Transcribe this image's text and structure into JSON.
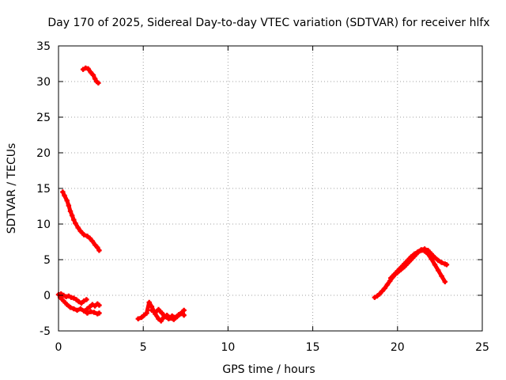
{
  "chart_data": {
    "type": "scatter",
    "title": "Day 170 of 2025, Sidereal Day-to-day VTEC variation (SDTVAR) for receiver hlfx",
    "xlabel": "GPS time / hours",
    "ylabel": "SDTVAR / TECUs",
    "xlim": [
      0,
      25
    ],
    "ylim": [
      -5,
      35
    ],
    "xticks": [
      0,
      5,
      10,
      15,
      20,
      25
    ],
    "yticks": [
      -5,
      0,
      5,
      10,
      15,
      20,
      25,
      30,
      35
    ],
    "grid": true,
    "series": [
      {
        "name": "SDTVAR",
        "color": "#ff0000",
        "segments": [
          {
            "x": [
              1.45,
              1.6,
              1.75,
              1.9,
              2.05,
              2.15,
              2.25,
              2.35
            ],
            "y": [
              31.7,
              31.9,
              31.8,
              31.3,
              30.9,
              30.4,
              30.0,
              29.8
            ]
          },
          {
            "x": [
              0.25,
              0.35,
              0.5,
              0.6,
              0.7,
              0.8,
              0.9,
              1.0,
              1.15,
              1.3,
              1.5,
              1.7,
              1.85,
              2.0,
              2.15,
              2.3,
              2.4
            ],
            "y": [
              14.5,
              14.0,
              13.3,
              12.6,
              11.8,
              11.2,
              10.6,
              10.1,
              9.5,
              9.0,
              8.5,
              8.3,
              8.0,
              7.6,
              7.1,
              6.7,
              6.3
            ]
          },
          {
            "x": [
              0.0,
              0.15,
              0.3,
              0.45,
              0.6,
              0.75,
              0.9,
              1.05,
              1.2,
              1.35,
              1.5,
              1.65
            ],
            "y": [
              0.1,
              0.2,
              0.0,
              -0.2,
              -0.1,
              -0.3,
              -0.4,
              -0.6,
              -0.9,
              -1.1,
              -0.8,
              -0.6
            ]
          },
          {
            "x": [
              0.1,
              0.3,
              0.5,
              0.7,
              0.9,
              1.1,
              1.3,
              1.5,
              1.7,
              1.9,
              2.1,
              2.3,
              2.4
            ],
            "y": [
              -0.3,
              -0.8,
              -1.3,
              -1.7,
              -1.9,
              -2.1,
              -1.9,
              -2.2,
              -2.5,
              -2.3,
              -2.4,
              -2.6,
              -2.5
            ]
          },
          {
            "x": [
              1.7,
              1.85,
              2.0,
              2.15,
              2.3,
              2.4
            ],
            "y": [
              -1.9,
              -1.6,
              -1.3,
              -1.5,
              -1.2,
              -1.4
            ]
          },
          {
            "x": [
              4.7,
              4.9,
              5.05,
              5.2,
              5.35,
              5.5,
              5.7,
              5.9,
              6.05,
              6.2,
              6.4,
              6.6,
              6.8,
              7.0,
              7.2,
              7.4
            ],
            "y": [
              -3.3,
              -3.1,
              -2.8,
              -2.5,
              -1.0,
              -1.6,
              -2.6,
              -3.3,
              -3.6,
              -3.1,
              -2.8,
              -3.2,
              -3.4,
              -3.0,
              -2.6,
              -2.1
            ]
          },
          {
            "x": [
              5.5,
              5.7,
              5.9,
              6.1,
              6.3,
              6.5,
              6.7,
              6.9,
              7.1,
              7.3,
              7.4
            ],
            "y": [
              -2.1,
              -2.4,
              -2.0,
              -2.5,
              -3.0,
              -3.3,
              -2.9,
              -3.1,
              -2.7,
              -2.4,
              -2.8
            ]
          },
          {
            "x": [
              18.65,
              18.8,
              18.95,
              19.1,
              19.25,
              19.4,
              19.55,
              19.7,
              19.85,
              20.0,
              20.2,
              20.4,
              20.6,
              20.8,
              21.0,
              21.2,
              21.4,
              21.6,
              21.8,
              22.0,
              22.2,
              22.4,
              22.6,
              22.8
            ],
            "y": [
              -0.3,
              -0.1,
              0.2,
              0.6,
              1.0,
              1.5,
              2.0,
              2.5,
              2.9,
              3.2,
              3.6,
              4.0,
              4.5,
              5.0,
              5.5,
              6.0,
              6.3,
              6.2,
              5.8,
              5.1,
              4.3,
              3.5,
              2.7,
              1.9
            ]
          },
          {
            "x": [
              19.6,
              19.8,
              20.0,
              20.2,
              20.4,
              20.6,
              20.8,
              21.0,
              21.2,
              21.4,
              21.6,
              21.8,
              22.0,
              22.2,
              22.4,
              22.6,
              22.8,
              22.9
            ],
            "y": [
              2.4,
              2.9,
              3.4,
              3.9,
              4.4,
              4.9,
              5.4,
              5.8,
              6.1,
              6.4,
              6.5,
              6.3,
              5.8,
              5.3,
              4.9,
              4.6,
              4.4,
              4.3
            ]
          }
        ]
      }
    ]
  }
}
